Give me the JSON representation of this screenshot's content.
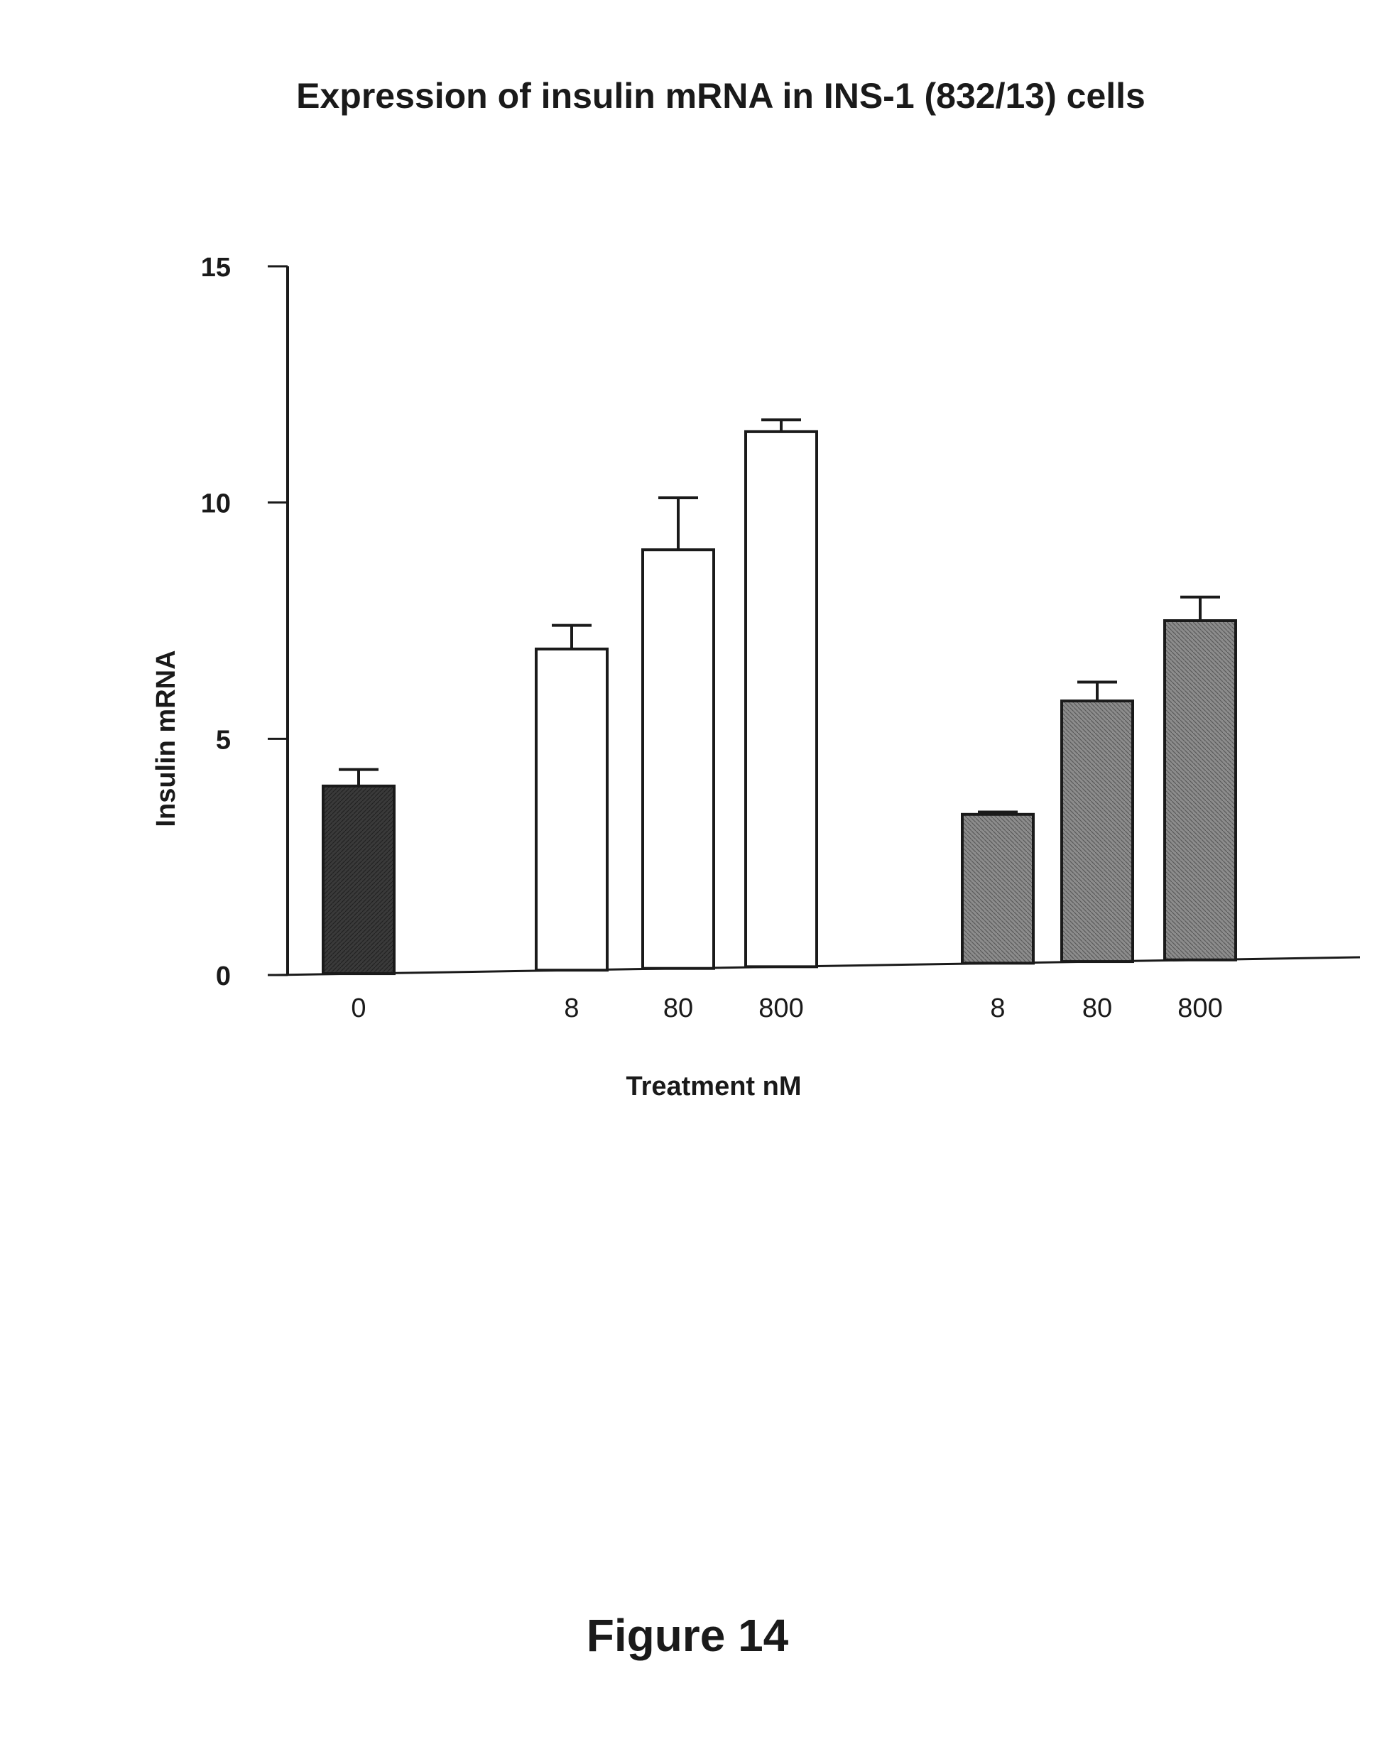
{
  "chart_data": {
    "type": "bar",
    "title": "Expression of insulin mRNA in INS-1 (832/13) cells",
    "xlabel": "Treatment nM",
    "ylabel": "Insulin mRNA",
    "ylim": [
      0,
      15
    ],
    "yticks": [
      {
        "value": 0,
        "label": "0"
      },
      {
        "value": 5,
        "label": "5"
      },
      {
        "value": 10,
        "label": "10"
      },
      {
        "value": 15,
        "label": "15"
      }
    ],
    "grid": false,
    "legend": null,
    "bars": [
      {
        "label": "0",
        "group": "control",
        "value": 4.0,
        "error": 0.35,
        "fill": "dark"
      },
      {
        "label": "8",
        "group": "group-1",
        "value": 6.9,
        "error": 0.5,
        "fill": "white"
      },
      {
        "label": "80",
        "group": "group-1",
        "value": 9.0,
        "error": 1.1,
        "fill": "white"
      },
      {
        "label": "800",
        "group": "group-1",
        "value": 11.5,
        "error": 0.25,
        "fill": "white"
      },
      {
        "label": "8",
        "group": "group-2",
        "value": 3.4,
        "error": 0.05,
        "fill": "grey"
      },
      {
        "label": "80",
        "group": "group-2",
        "value": 5.8,
        "error": 0.4,
        "fill": "grey"
      },
      {
        "label": "800",
        "group": "group-2",
        "value": 7.5,
        "error": 0.5,
        "fill": "grey"
      }
    ]
  },
  "caption": "Figure 14",
  "colors": {
    "dark": "#3a3a3a",
    "grey": "#8c8c8c",
    "white": "#ffffff",
    "line": "#1a1a1a"
  }
}
